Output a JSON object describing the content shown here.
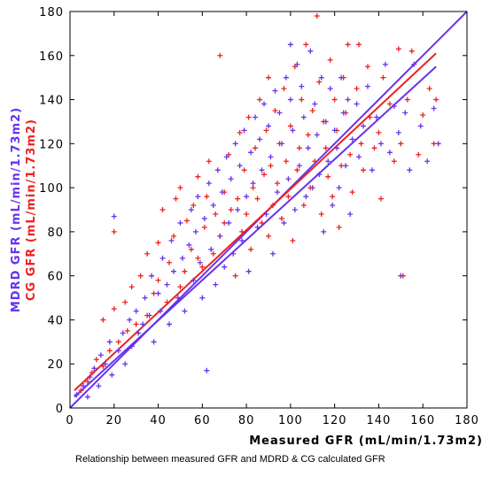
{
  "caption": "Relationship between measured GFR and MDRD & CG calculated GFR",
  "chart_data": {
    "type": "scatter",
    "xlabel": "Measured GFR (mL/min/1.73m2)",
    "ylabel_lines": [
      {
        "text": "MDRD GFR (mL/min/1.73m2)",
        "color": "#6633ee"
      },
      {
        "text": "CG GFR (mL/min/1.73m2)",
        "color": "#ee2222"
      }
    ],
    "xlim": [
      0,
      180
    ],
    "ylim": [
      0,
      180
    ],
    "x_ticks": [
      0,
      20,
      40,
      60,
      80,
      100,
      120,
      140,
      160,
      180
    ],
    "y_ticks": [
      0,
      20,
      40,
      60,
      80,
      100,
      120,
      140,
      160,
      180
    ],
    "grid": false,
    "marker": "+",
    "series": [
      {
        "color": "#ee2222",
        "points": [
          [
            5,
            8
          ],
          [
            8,
            12
          ],
          [
            10,
            16
          ],
          [
            12,
            22
          ],
          [
            15,
            19
          ],
          [
            15,
            40
          ],
          [
            18,
            26
          ],
          [
            20,
            45
          ],
          [
            20,
            80
          ],
          [
            22,
            30
          ],
          [
            25,
            48
          ],
          [
            26,
            35
          ],
          [
            28,
            55
          ],
          [
            30,
            38
          ],
          [
            32,
            60
          ],
          [
            35,
            42
          ],
          [
            35,
            70
          ],
          [
            38,
            52
          ],
          [
            40,
            58
          ],
          [
            40,
            75
          ],
          [
            42,
            90
          ],
          [
            44,
            48
          ],
          [
            45,
            66
          ],
          [
            47,
            78
          ],
          [
            48,
            95
          ],
          [
            50,
            55
          ],
          [
            50,
            100
          ],
          [
            52,
            62
          ],
          [
            53,
            85
          ],
          [
            55,
            72
          ],
          [
            56,
            92
          ],
          [
            58,
            68
          ],
          [
            58,
            105
          ],
          [
            60,
            64
          ],
          [
            61,
            82
          ],
          [
            62,
            96
          ],
          [
            63,
            112
          ],
          [
            65,
            70
          ],
          [
            66,
            88
          ],
          [
            68,
            78
          ],
          [
            68,
            160
          ],
          [
            70,
            84
          ],
          [
            70,
            98
          ],
          [
            72,
            115
          ],
          [
            73,
            90
          ],
          [
            75,
            60
          ],
          [
            76,
            95
          ],
          [
            77,
            125
          ],
          [
            78,
            80
          ],
          [
            79,
            108
          ],
          [
            80,
            88
          ],
          [
            81,
            132
          ],
          [
            82,
            72
          ],
          [
            83,
            100
          ],
          [
            84,
            118
          ],
          [
            85,
            95
          ],
          [
            86,
            140
          ],
          [
            87,
            84
          ],
          [
            88,
            106
          ],
          [
            89,
            126
          ],
          [
            90,
            78
          ],
          [
            90,
            150
          ],
          [
            91,
            110
          ],
          [
            92,
            92
          ],
          [
            93,
            135
          ],
          [
            94,
            102
          ],
          [
            95,
            120
          ],
          [
            96,
            86
          ],
          [
            97,
            145
          ],
          [
            98,
            112
          ],
          [
            99,
            96
          ],
          [
            100,
            128
          ],
          [
            101,
            76
          ],
          [
            102,
            155
          ],
          [
            103,
            108
          ],
          [
            104,
            118
          ],
          [
            105,
            140
          ],
          [
            106,
            92
          ],
          [
            107,
            165
          ],
          [
            108,
            124
          ],
          [
            109,
            100
          ],
          [
            110,
            135
          ],
          [
            111,
            112
          ],
          [
            112,
            178
          ],
          [
            113,
            148
          ],
          [
            114,
            88
          ],
          [
            115,
            130
          ],
          [
            116,
            118
          ],
          [
            117,
            105
          ],
          [
            118,
            158
          ],
          [
            119,
            96
          ],
          [
            120,
            140
          ],
          [
            121,
            126
          ],
          [
            122,
            82
          ],
          [
            123,
            110
          ],
          [
            124,
            150
          ],
          [
            125,
            134
          ],
          [
            126,
            165
          ],
          [
            127,
            115
          ],
          [
            128,
            98
          ],
          [
            130,
            145
          ],
          [
            131,
            165
          ],
          [
            132,
            120
          ],
          [
            133,
            108
          ],
          [
            135,
            155
          ],
          [
            136,
            132
          ],
          [
            138,
            118
          ],
          [
            140,
            125
          ],
          [
            141,
            95
          ],
          [
            142,
            150
          ],
          [
            145,
            138
          ],
          [
            147,
            112
          ],
          [
            149,
            163
          ],
          [
            150,
            120
          ],
          [
            151,
            60
          ],
          [
            153,
            140
          ],
          [
            155,
            162
          ],
          [
            158,
            115
          ],
          [
            160,
            133
          ],
          [
            163,
            145
          ],
          [
            165,
            120
          ],
          [
            166,
            140
          ]
        ]
      },
      {
        "color": "#6633ee",
        "points": [
          [
            3,
            6
          ],
          [
            6,
            10
          ],
          [
            8,
            5
          ],
          [
            9,
            14
          ],
          [
            11,
            18
          ],
          [
            13,
            10
          ],
          [
            14,
            24
          ],
          [
            16,
            20
          ],
          [
            18,
            30
          ],
          [
            19,
            15
          ],
          [
            20,
            87
          ],
          [
            22,
            26
          ],
          [
            24,
            34
          ],
          [
            25,
            20
          ],
          [
            27,
            40
          ],
          [
            28,
            28
          ],
          [
            30,
            44
          ],
          [
            31,
            34
          ],
          [
            33,
            38
          ],
          [
            34,
            50
          ],
          [
            36,
            42
          ],
          [
            37,
            60
          ],
          [
            38,
            30
          ],
          [
            40,
            52
          ],
          [
            41,
            44
          ],
          [
            42,
            68
          ],
          [
            44,
            56
          ],
          [
            45,
            38
          ],
          [
            46,
            76
          ],
          [
            47,
            62
          ],
          [
            49,
            50
          ],
          [
            50,
            84
          ],
          [
            51,
            68
          ],
          [
            52,
            44
          ],
          [
            54,
            74
          ],
          [
            55,
            90
          ],
          [
            56,
            58
          ],
          [
            57,
            80
          ],
          [
            58,
            96
          ],
          [
            59,
            66
          ],
          [
            60,
            50
          ],
          [
            61,
            86
          ],
          [
            62,
            17
          ],
          [
            63,
            102
          ],
          [
            64,
            72
          ],
          [
            65,
            92
          ],
          [
            66,
            56
          ],
          [
            67,
            108
          ],
          [
            68,
            78
          ],
          [
            69,
            98
          ],
          [
            70,
            64
          ],
          [
            71,
            114
          ],
          [
            72,
            84
          ],
          [
            73,
            104
          ],
          [
            74,
            70
          ],
          [
            75,
            120
          ],
          [
            76,
            90
          ],
          [
            77,
            110
          ],
          [
            78,
            76
          ],
          [
            79,
            126
          ],
          [
            80,
            96
          ],
          [
            81,
            62
          ],
          [
            82,
            116
          ],
          [
            83,
            102
          ],
          [
            84,
            132
          ],
          [
            85,
            82
          ],
          [
            86,
            122
          ],
          [
            87,
            108
          ],
          [
            88,
            138
          ],
          [
            89,
            88
          ],
          [
            90,
            128
          ],
          [
            91,
            114
          ],
          [
            92,
            70
          ],
          [
            93,
            144
          ],
          [
            94,
            98
          ],
          [
            95,
            134
          ],
          [
            96,
            120
          ],
          [
            97,
            84
          ],
          [
            98,
            150
          ],
          [
            99,
            104
          ],
          [
            100,
            140
          ],
          [
            100,
            165
          ],
          [
            101,
            126
          ],
          [
            102,
            90
          ],
          [
            103,
            156
          ],
          [
            104,
            110
          ],
          [
            105,
            146
          ],
          [
            106,
            132
          ],
          [
            107,
            96
          ],
          [
            108,
            118
          ],
          [
            109,
            162
          ],
          [
            110,
            100
          ],
          [
            111,
            138
          ],
          [
            112,
            124
          ],
          [
            113,
            106
          ],
          [
            114,
            150
          ],
          [
            115,
            80
          ],
          [
            116,
            130
          ],
          [
            117,
            112
          ],
          [
            118,
            145
          ],
          [
            119,
            92
          ],
          [
            120,
            126
          ],
          [
            121,
            118
          ],
          [
            122,
            100
          ],
          [
            123,
            150
          ],
          [
            124,
            134
          ],
          [
            125,
            110
          ],
          [
            126,
            140
          ],
          [
            127,
            88
          ],
          [
            128,
            122
          ],
          [
            130,
            138
          ],
          [
            131,
            114
          ],
          [
            133,
            128
          ],
          [
            135,
            146
          ],
          [
            137,
            108
          ],
          [
            139,
            132
          ],
          [
            141,
            120
          ],
          [
            143,
            156
          ],
          [
            145,
            116
          ],
          [
            147,
            137
          ],
          [
            149,
            125
          ],
          [
            150,
            60
          ],
          [
            152,
            134
          ],
          [
            154,
            108
          ],
          [
            156,
            156
          ],
          [
            159,
            128
          ],
          [
            162,
            112
          ],
          [
            165,
            136
          ],
          [
            167,
            120
          ]
        ]
      }
    ],
    "lines": [
      {
        "color": "#6633ee",
        "x": [
          0,
          180
        ],
        "y": [
          0,
          180
        ]
      },
      {
        "color": "#ee2222",
        "x": [
          2,
          166
        ],
        "y": [
          8,
          161
        ]
      },
      {
        "color": "#6633ee",
        "x": [
          2,
          166
        ],
        "y": [
          5,
          155
        ]
      }
    ]
  }
}
